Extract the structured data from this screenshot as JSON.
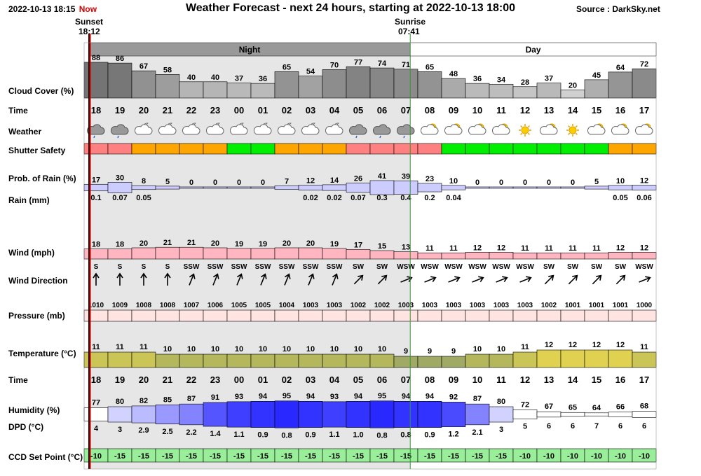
{
  "header": {
    "datetime": "2022-10-13 18:15",
    "now_label": "Now",
    "title": "Weather Forecast - next 24 hours, starting at 2022-10-13 18:00",
    "source": "Source : DarkSky.net"
  },
  "markers": {
    "sunset_label": "Sunset",
    "sunset_time": "18:12",
    "sunrise_label": "Sunrise",
    "sunrise_time": "07:41"
  },
  "periods": {
    "night": "Night",
    "day": "Day"
  },
  "row_labels": {
    "cloud": "Cloud Cover (%)",
    "time": "Time",
    "weather": "Weather",
    "shutter": "Shutter Safety",
    "prob_rain": "Prob. of Rain (%)",
    "rain": "Rain (mm)",
    "wind": "Wind (mph)",
    "wind_dir": "Wind Direction",
    "pressure": "Pressure (mb)",
    "temperature": "Temperature (°C)",
    "time2": "Time",
    "humidity": "Humidity (%)",
    "dpd": "DPD (°C)",
    "ccd": "CCD Set Point (°C)"
  },
  "colors": {
    "night_bg": "#e6e6e6",
    "night_header": "#999999",
    "sunset_line": "#cc0000",
    "sunrise_line": "#339933",
    "shutter_red": "#ff8080",
    "shutter_orange": "#ffa500",
    "shutter_green": "#00ee00",
    "wind_fill": "#ffb6c1",
    "pressure_fill": "#ffe4e1",
    "rain_fill": "#ccccff",
    "ccd_fill": "#99ee99"
  },
  "chart_data": {
    "type": "table",
    "hours": [
      "18",
      "19",
      "20",
      "21",
      "22",
      "23",
      "00",
      "01",
      "02",
      "03",
      "04",
      "05",
      "06",
      "07",
      "08",
      "09",
      "10",
      "11",
      "12",
      "13",
      "14",
      "15",
      "16",
      "17"
    ],
    "cloud_cover": [
      88,
      86,
      67,
      58,
      40,
      40,
      37,
      36,
      65,
      54,
      70,
      77,
      74,
      71,
      65,
      48,
      36,
      34,
      28,
      37,
      20,
      45,
      64,
      72
    ],
    "weather_icons": [
      "rain-cloud-icon",
      "rain-cloud-icon",
      "partly-cloudy-night-icon",
      "partly-cloudy-night-icon",
      "partly-cloudy-night-icon",
      "partly-cloudy-night-icon",
      "partly-cloudy-night-icon",
      "partly-cloudy-night-icon",
      "partly-cloudy-night-icon",
      "partly-cloudy-night-icon",
      "partly-cloudy-night-icon",
      "rain-cloud-icon",
      "rain-cloud-icon",
      "rain-cloud-icon",
      "partly-cloudy-day-icon",
      "partly-cloudy-day-icon",
      "partly-cloudy-day-icon",
      "partly-cloudy-day-icon",
      "clear-day-icon",
      "partly-cloudy-day-icon",
      "clear-day-icon",
      "partly-cloudy-day-icon",
      "partly-cloudy-day-icon",
      "partly-cloudy-day-icon"
    ],
    "shutter_safety": [
      "red",
      "red",
      "orange",
      "orange",
      "orange",
      "orange",
      "green",
      "green",
      "orange",
      "orange",
      "orange",
      "red",
      "red",
      "red",
      "red",
      "green",
      "green",
      "green",
      "green",
      "green",
      "green",
      "green",
      "orange",
      "orange"
    ],
    "prob_rain": [
      17,
      30,
      8,
      5,
      0,
      0,
      0,
      0,
      7,
      12,
      14,
      26,
      41,
      39,
      23,
      10,
      0,
      0,
      0,
      0,
      0,
      5,
      10,
      12
    ],
    "rain_mm": [
      "0.1",
      "0.07",
      "0.05",
      "",
      "",
      "",
      "",
      "",
      "",
      "0.02",
      "0.02",
      "0.07",
      "0.3",
      "0.4",
      "0.2",
      "0.04",
      "",
      "",
      "",
      "",
      "",
      "",
      "0.05",
      "0.06"
    ],
    "wind_mph": [
      18,
      18,
      20,
      21,
      21,
      20,
      19,
      19,
      20,
      20,
      19,
      17,
      15,
      13,
      11,
      11,
      12,
      12,
      11,
      11,
      11,
      11,
      12,
      12
    ],
    "wind_dir": [
      "S",
      "S",
      "S",
      "S",
      "SSW",
      "SSW",
      "SSW",
      "SSW",
      "SSW",
      "SSW",
      "SSW",
      "SW",
      "SW",
      "WSW",
      "WSW",
      "WSW",
      "WSW",
      "WSW",
      "WSW",
      "SW",
      "SW",
      "SW",
      "SW",
      "WSW"
    ],
    "wind_bearing": [
      180,
      180,
      180,
      180,
      202,
      202,
      202,
      202,
      202,
      202,
      202,
      225,
      225,
      248,
      248,
      248,
      248,
      248,
      248,
      225,
      225,
      225,
      225,
      248
    ],
    "pressure_mb": [
      1010,
      1009,
      1008,
      1008,
      1007,
      1006,
      1005,
      1005,
      1004,
      1003,
      1003,
      1002,
      1002,
      1003,
      1003,
      1003,
      1003,
      1003,
      1003,
      1002,
      1001,
      1001,
      1001,
      1000
    ],
    "temperature_c": [
      11,
      11,
      11,
      10,
      10,
      10,
      10,
      10,
      10,
      10,
      10,
      10,
      10,
      9,
      9,
      9,
      10,
      10,
      11,
      12,
      12,
      12,
      12,
      11
    ],
    "humidity_pct": [
      77,
      80,
      82,
      85,
      87,
      91,
      93,
      94,
      95,
      94,
      93,
      94,
      95,
      94,
      94,
      92,
      87,
      80,
      72,
      67,
      65,
      64,
      66,
      68
    ],
    "dpd_c": [
      "4",
      "3",
      "2.9",
      "2.5",
      "2.2",
      "1.4",
      "1.1",
      "0.9",
      "0.8",
      "0.9",
      "1.1",
      "1.0",
      "0.8",
      "0.8",
      "0.9",
      "1.2",
      "2.1",
      "3",
      "5",
      "6",
      "6",
      "7",
      "6",
      "6"
    ],
    "ccd_setpoint_c": [
      -10,
      -15,
      -15,
      -15,
      -15,
      -15,
      -15,
      -15,
      -15,
      -15,
      -15,
      -15,
      -15,
      -15,
      -15,
      -15,
      -15,
      -15,
      -10,
      -10,
      -10,
      -10,
      -10,
      -10
    ],
    "night_range": [
      "18:12",
      "07:41"
    ]
  }
}
